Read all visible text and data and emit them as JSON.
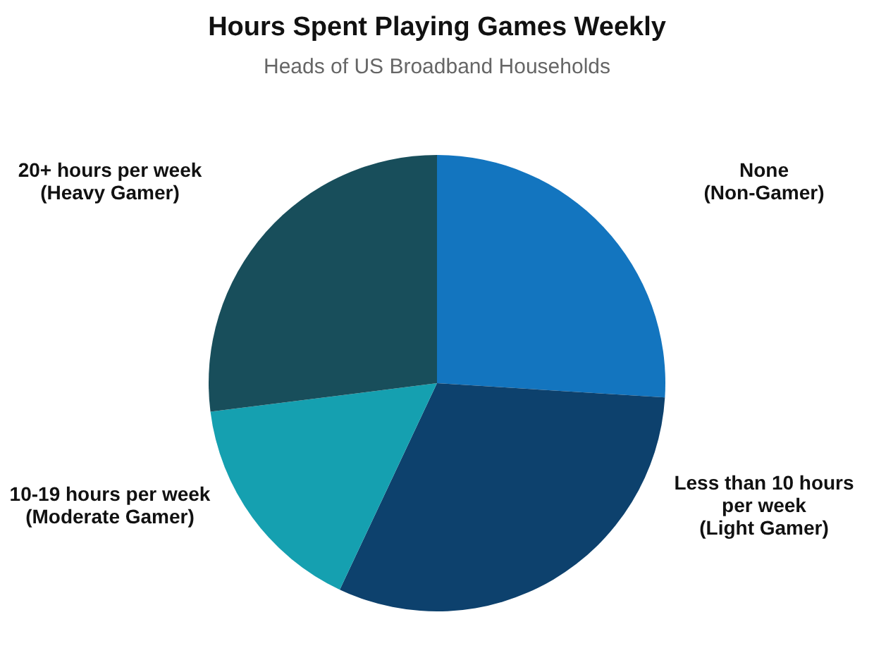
{
  "chart_data": {
    "type": "pie",
    "title": "Hours Spent Playing Games Weekly",
    "subtitle": "Heads of US Broadband Households",
    "categories": [
      "None\n(Non-Gamer)",
      "Less than 10 hours\nper week\n(Light Gamer)",
      "10-19 hours per week\n(Moderate Gamer)",
      "20+ hours per week\n(Heavy Gamer)"
    ],
    "values": [
      26,
      31,
      16,
      27
    ],
    "colors": [
      "#1375bf",
      "#0d416d",
      "#15a0b0",
      "#184e5b"
    ]
  }
}
